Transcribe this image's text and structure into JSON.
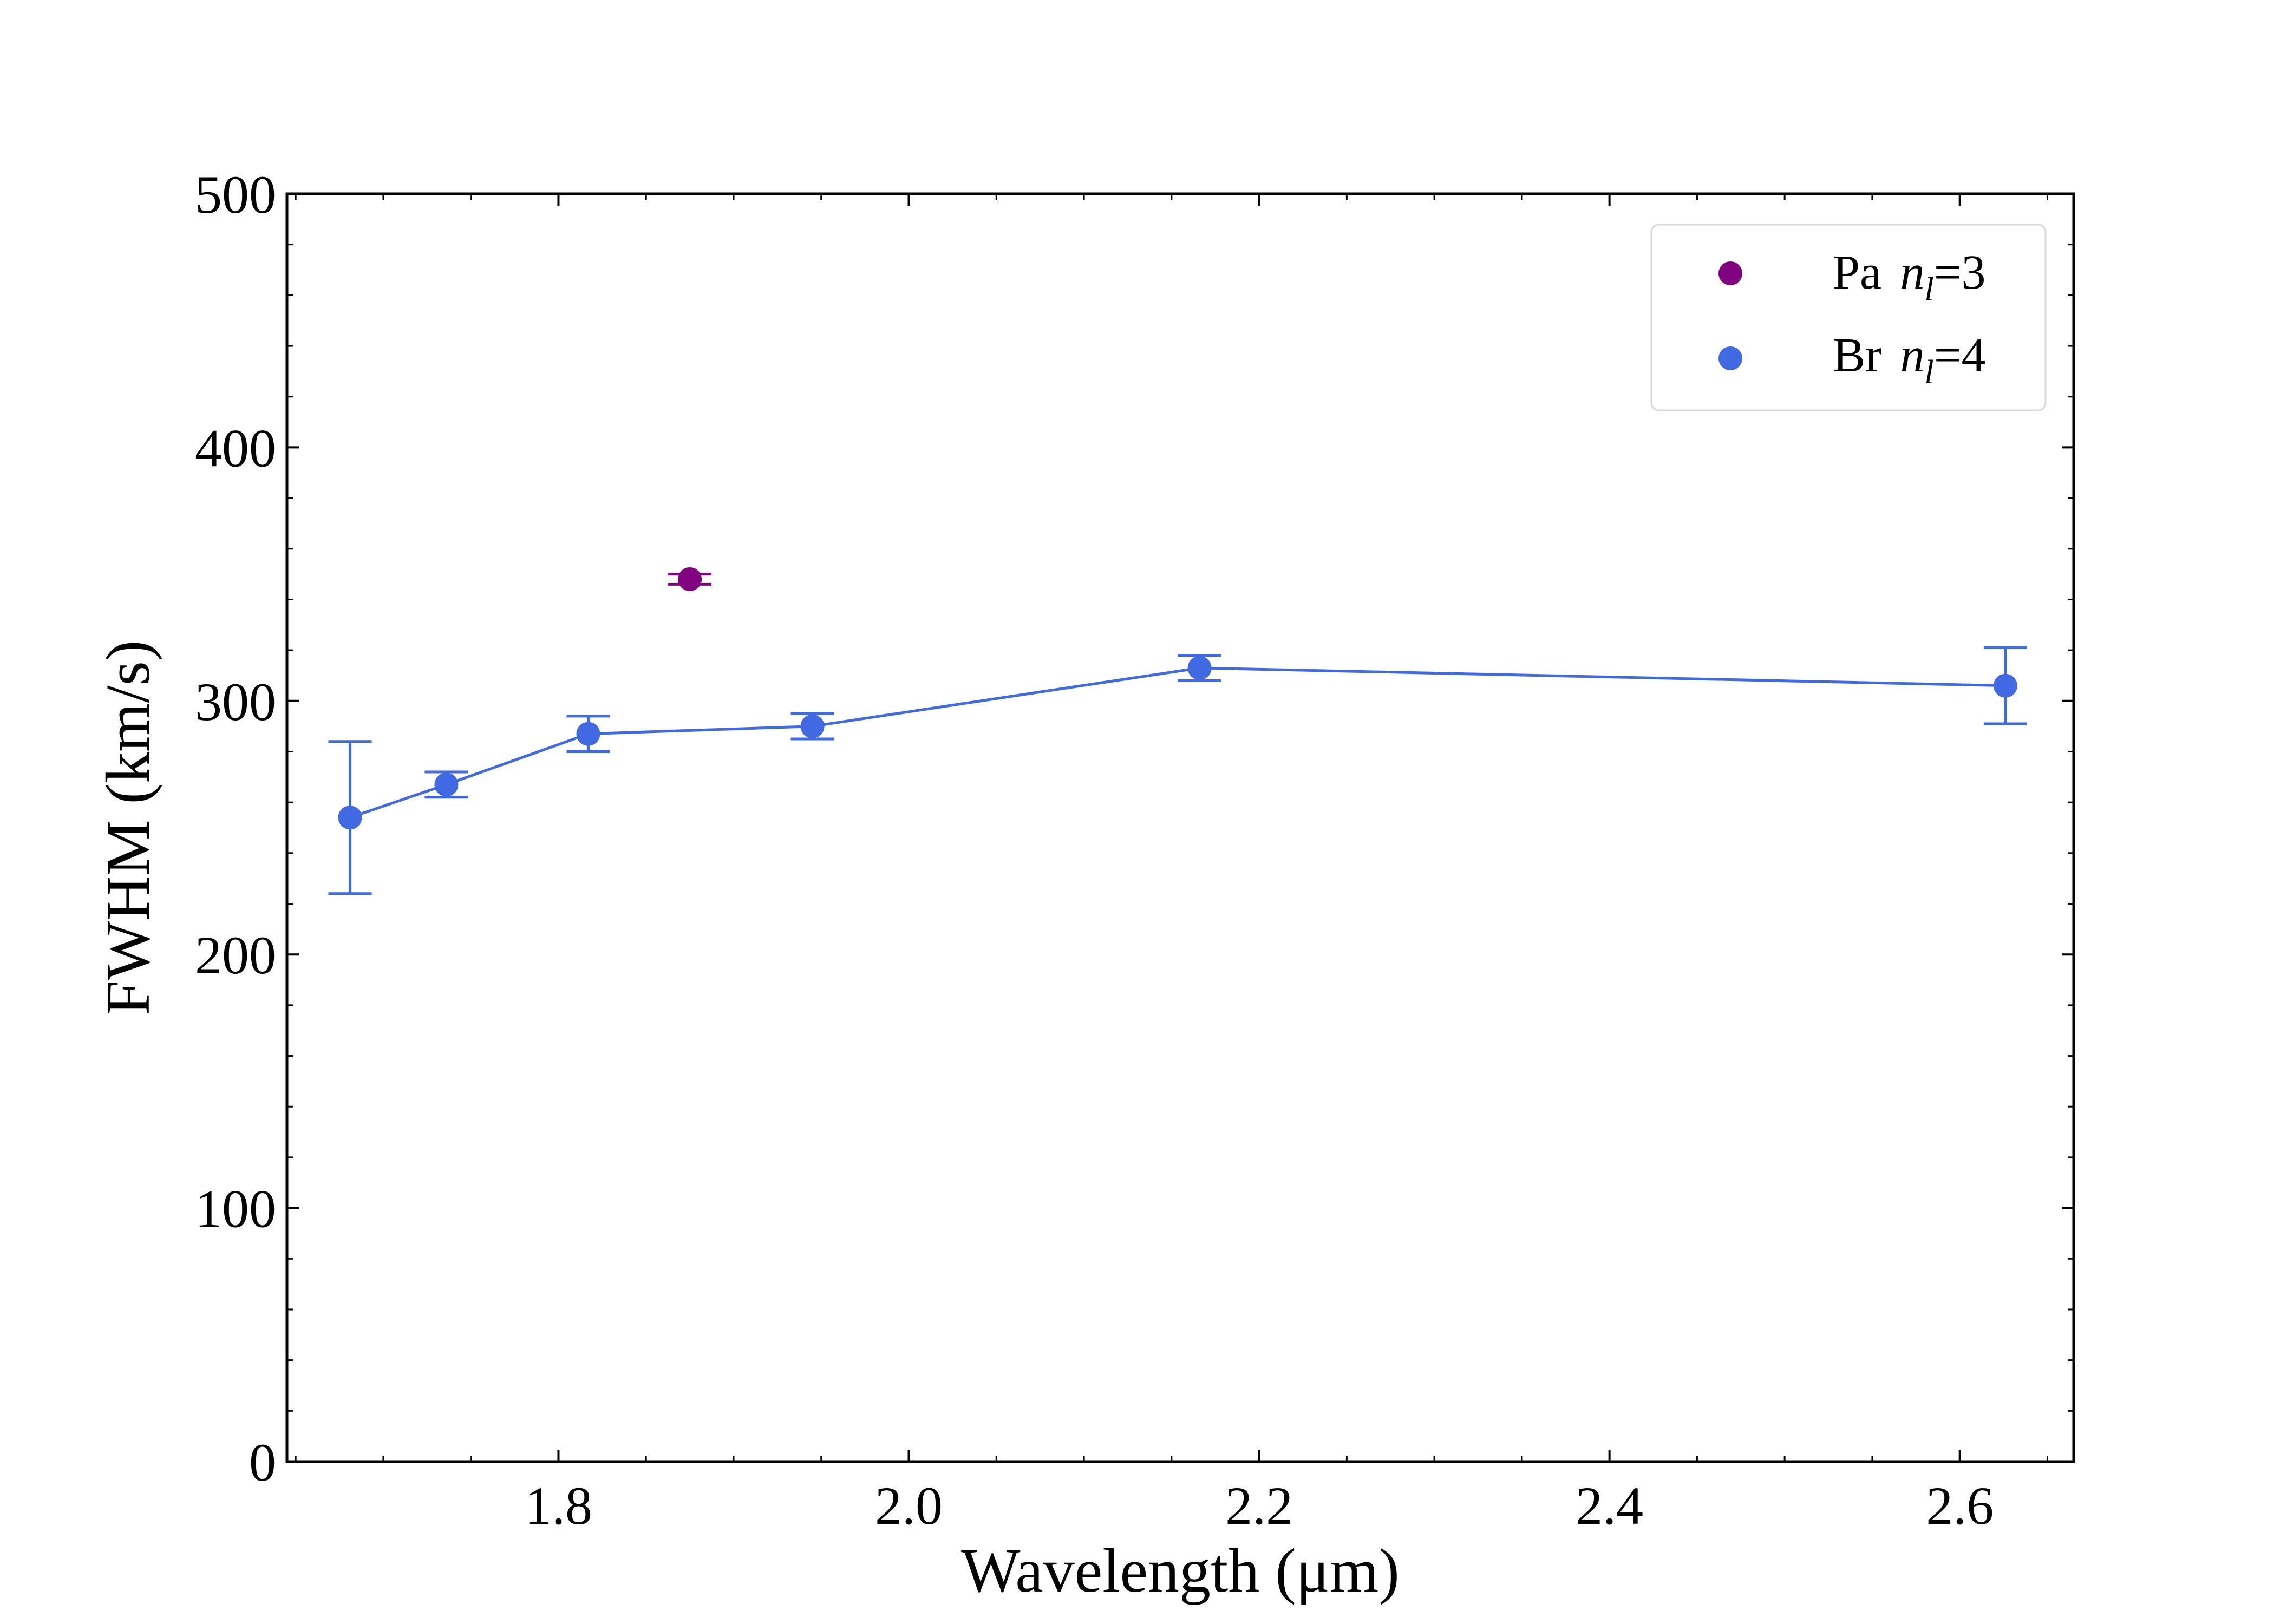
{
  "chart_data": {
    "type": "scatter",
    "title": "",
    "xlabel": "Wavelength (μm)",
    "ylabel": "FWHM (km/s)",
    "xlim": [
      1.645,
      2.665
    ],
    "ylim": [
      0,
      500
    ],
    "x_ticks": [
      1.8,
      2.0,
      2.2,
      2.4,
      2.6
    ],
    "x_tick_labels": [
      "1.8",
      "2.0",
      "2.2",
      "2.4",
      "2.6"
    ],
    "y_ticks": [
      0,
      100,
      200,
      300,
      400,
      500
    ],
    "y_tick_labels": [
      "0",
      "100",
      "200",
      "300",
      "400",
      "500"
    ],
    "grid": false,
    "legend_position": "top-right",
    "series": [
      {
        "name": "Pa n_l = 3",
        "legend_prefix": "Pa",
        "legend_var": "n",
        "legend_sub": "l",
        "legend_eq": "=",
        "legend_num": "3",
        "color": "#800080",
        "connected": false,
        "x": [
          1.875
        ],
        "y": [
          348
        ],
        "yerr": [
          2
        ]
      },
      {
        "name": "Br n_l = 4",
        "legend_prefix": "Br",
        "legend_var": "n",
        "legend_sub": "l",
        "legend_eq": "=",
        "legend_num": "4",
        "color": "#4169E1",
        "connected": true,
        "x": [
          1.681,
          1.736,
          1.817,
          1.945,
          2.166,
          2.626
        ],
        "y": [
          254,
          267,
          287,
          290,
          313,
          306
        ],
        "yerr": [
          30,
          5,
          7,
          5,
          5,
          15
        ]
      }
    ]
  }
}
